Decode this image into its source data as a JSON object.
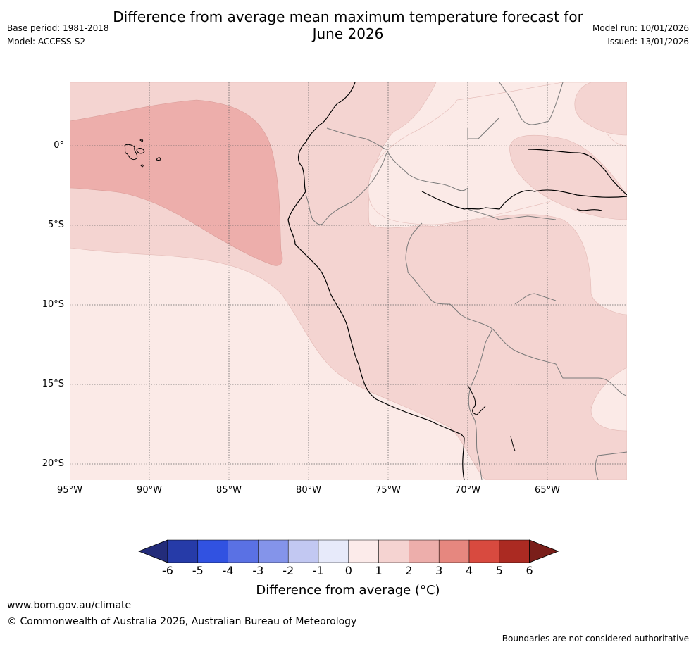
{
  "header": {
    "title_line1": "Difference from average mean maximum temperature forecast for",
    "title_line2": "June 2026",
    "base_period": "Base period: 1981-2018",
    "model": "Model: ACCESS-S2",
    "model_run": "Model run: 10/01/2026",
    "issued": "Issued: 13/01/2026"
  },
  "map": {
    "lat_labels": [
      "0°",
      "5°S",
      "10°S",
      "15°S",
      "20°S"
    ],
    "lon_labels": [
      "95°W",
      "90°W",
      "85°W",
      "80°W",
      "75°W",
      "70°W",
      "65°W"
    ],
    "field_colors": {
      "anom_0_1": "#fbeae7",
      "anom_1_2": "#f4d4d1",
      "anom_2_3": "#edaeab"
    }
  },
  "colorbar": {
    "ticks": [
      "-6",
      "-5",
      "-4",
      "-3",
      "-2",
      "-1",
      "0",
      "1",
      "2",
      "3",
      "4",
      "5",
      "6"
    ],
    "colors": [
      "#232c7a",
      "#263ba8",
      "#3152e1",
      "#5a71e4",
      "#8494ea",
      "#c2c8f2",
      "#e7eafa",
      "#fcebea",
      "#f5d3d1",
      "#edaeab",
      "#e6877f",
      "#d84a3f",
      "#ab2a22",
      "#7a1e1a"
    ],
    "label": "Difference from average (°C)"
  },
  "footer": {
    "url": "www.bom.gov.au/climate",
    "copyright": "© Commonwealth of Australia 2026, Australian Bureau of Meteorology",
    "disclaimer": "Boundaries are not considered authoritative"
  }
}
